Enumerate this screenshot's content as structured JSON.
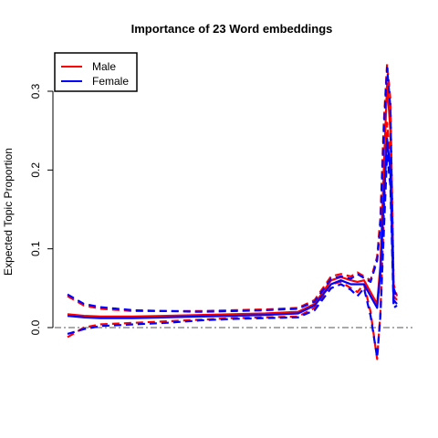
{
  "chart_data": {
    "type": "line",
    "title": "Importance of 23 Word embeddings",
    "xlabel": "",
    "ylabel": "Expected Topic Proportion",
    "xlim": [
      0,
      1
    ],
    "ylim": [
      -0.02,
      0.33
    ],
    "yticks": [
      0.0,
      0.1,
      0.2,
      0.3
    ],
    "ytick_labels": [
      "0.0",
      "0.1",
      "0.2",
      "0.3"
    ],
    "reference_line": 0.0,
    "grid": false,
    "legend": {
      "position": "top-left",
      "entries": [
        {
          "label": "Male",
          "color": "#ff0000"
        },
        {
          "label": "Female",
          "color": "#0000ff"
        }
      ]
    },
    "x": [
      0,
      0.05,
      0.1,
      0.2,
      0.3,
      0.4,
      0.5,
      0.6,
      0.7,
      0.75,
      0.8,
      0.83,
      0.86,
      0.88,
      0.9,
      0.92,
      0.94,
      0.95,
      0.96,
      0.97,
      0.98,
      0.99,
      1.0
    ],
    "series": [
      {
        "name": "Male",
        "color": "#ff0000",
        "style": "solid",
        "values": [
          0.017,
          0.015,
          0.014,
          0.014,
          0.015,
          0.016,
          0.017,
          0.018,
          0.02,
          0.03,
          0.06,
          0.064,
          0.06,
          0.058,
          0.06,
          0.045,
          0.03,
          0.08,
          0.2,
          0.31,
          0.25,
          0.04,
          0.035
        ]
      },
      {
        "name": "Male",
        "color": "#ff0000",
        "style": "dashed",
        "values": [
          -0.012,
          0.0,
          0.004,
          0.006,
          0.008,
          0.01,
          0.012,
          0.013,
          0.014,
          0.025,
          0.055,
          0.058,
          0.05,
          0.045,
          0.055,
          0.02,
          -0.04,
          0.02,
          0.14,
          0.26,
          0.21,
          0.03,
          0.03
        ]
      },
      {
        "name": "Male",
        "color": "#ff0000",
        "style": "dashed",
        "values": [
          0.04,
          0.028,
          0.024,
          0.021,
          0.021,
          0.021,
          0.022,
          0.023,
          0.025,
          0.035,
          0.065,
          0.068,
          0.065,
          0.07,
          0.065,
          0.06,
          0.09,
          0.14,
          0.26,
          0.335,
          0.29,
          0.055,
          0.04
        ]
      },
      {
        "name": "Female",
        "color": "#0000ff",
        "style": "solid",
        "values": [
          0.015,
          0.013,
          0.012,
          0.012,
          0.013,
          0.014,
          0.015,
          0.016,
          0.018,
          0.028,
          0.055,
          0.06,
          0.055,
          0.055,
          0.055,
          0.04,
          0.025,
          0.07,
          0.16,
          0.24,
          0.2,
          0.035,
          0.03
        ]
      },
      {
        "name": "Female",
        "color": "#0000ff",
        "style": "dashed",
        "values": [
          -0.008,
          -0.002,
          0.002,
          0.004,
          0.006,
          0.009,
          0.011,
          0.012,
          0.013,
          0.022,
          0.05,
          0.055,
          0.048,
          0.04,
          0.05,
          0.015,
          -0.038,
          0.015,
          0.12,
          0.22,
          0.18,
          0.025,
          0.028
        ]
      },
      {
        "name": "Female",
        "color": "#0000ff",
        "style": "dashed",
        "values": [
          0.042,
          0.03,
          0.026,
          0.022,
          0.021,
          0.02,
          0.021,
          0.022,
          0.024,
          0.033,
          0.062,
          0.065,
          0.062,
          0.068,
          0.063,
          0.058,
          0.085,
          0.13,
          0.25,
          0.33,
          0.28,
          0.05,
          0.038
        ]
      }
    ]
  }
}
